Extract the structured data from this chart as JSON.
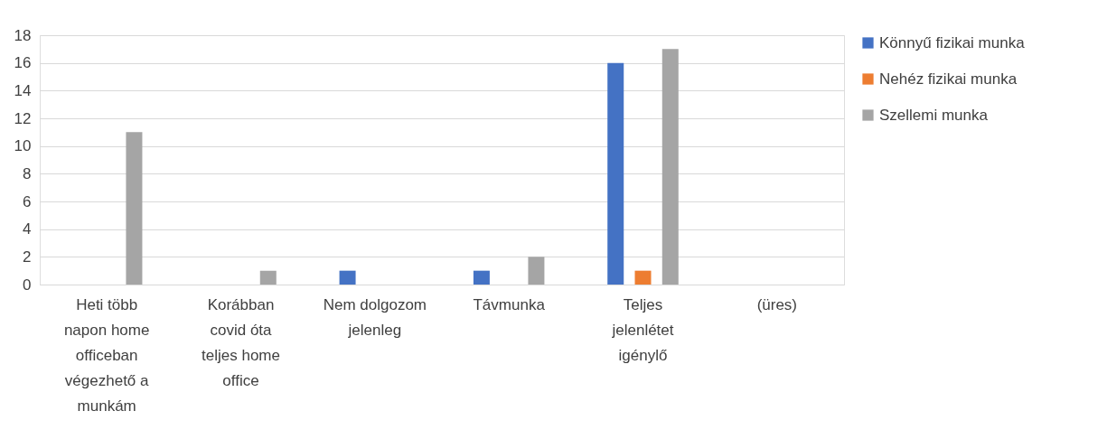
{
  "chart_data": {
    "type": "bar",
    "categories": [
      "Heti több napon home officeban végezhető a munkám",
      "Korábban covid óta teljes home office",
      "Nem dolgozom jelenleg",
      "Távmunka",
      "Teljes jelenlétet igénylő",
      "(üres)"
    ],
    "series": [
      {
        "name": "Könnyű fizikai munka",
        "color": "#4472c4",
        "values": [
          null,
          null,
          1,
          1,
          16,
          null
        ]
      },
      {
        "name": "Nehéz fizikai munka",
        "color": "#ed7d31",
        "values": [
          null,
          null,
          null,
          null,
          1,
          null
        ]
      },
      {
        "name": "Szellemi munka",
        "color": "#a5a5a5",
        "values": [
          11,
          1,
          null,
          2,
          17,
          null
        ]
      }
    ],
    "ylim": [
      0,
      18
    ],
    "yticks": [
      0,
      2,
      4,
      6,
      8,
      10,
      12,
      14,
      16,
      18
    ],
    "grid": "y",
    "legend": "right"
  }
}
